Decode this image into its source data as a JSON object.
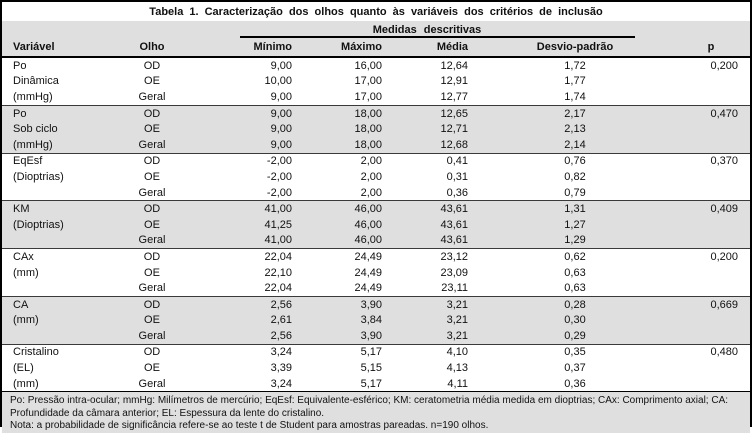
{
  "title": "Tabela 1. Caracterização dos olhos quanto às variáveis dos critérios de inclusão",
  "table": {
    "measures_group_header": "Medidas descritivas",
    "columns": {
      "variable": "Variável",
      "eye": "Olho",
      "min": "Mínimo",
      "max": "Máximo",
      "mean": "Média",
      "sd": "Desvio-padrão",
      "p": "p"
    },
    "groups": [
      {
        "variable_lines": [
          "Po",
          "Dinâmica",
          "(mmHg)"
        ],
        "shaded": false,
        "rows": [
          {
            "eye": "OD",
            "min": "9,00",
            "max": "16,00",
            "mean": "12,64",
            "sd": "1,72",
            "p": "0,200"
          },
          {
            "eye": "OE",
            "min": "10,00",
            "max": "17,00",
            "mean": "12,91",
            "sd": "1,77",
            "p": ""
          },
          {
            "eye": "Geral",
            "min": "9,00",
            "max": "17,00",
            "mean": "12,77",
            "sd": "1,74",
            "p": ""
          }
        ]
      },
      {
        "variable_lines": [
          "Po",
          "Sob ciclo",
          "(mmHg)"
        ],
        "shaded": true,
        "rows": [
          {
            "eye": "OD",
            "min": "9,00",
            "max": "18,00",
            "mean": "12,65",
            "sd": "2,17",
            "p": "0,470"
          },
          {
            "eye": "OE",
            "min": "9,00",
            "max": "18,00",
            "mean": "12,71",
            "sd": "2,13",
            "p": ""
          },
          {
            "eye": "Geral",
            "min": "9,00",
            "max": "18,00",
            "mean": "12,68",
            "sd": "2,14",
            "p": ""
          }
        ]
      },
      {
        "variable_lines": [
          "EqEsf",
          "(Dioptrias)",
          ""
        ],
        "shaded": false,
        "rows": [
          {
            "eye": "OD",
            "min": "-2,00",
            "max": "2,00",
            "mean": "0,41",
            "sd": "0,76",
            "p": "0,370"
          },
          {
            "eye": "OE",
            "min": "-2,00",
            "max": "2,00",
            "mean": "0,31",
            "sd": "0,82",
            "p": ""
          },
          {
            "eye": "Geral",
            "min": "-2,00",
            "max": "2,00",
            "mean": "0,36",
            "sd": "0,79",
            "p": ""
          }
        ]
      },
      {
        "variable_lines": [
          "KM",
          "(Dioptrias)",
          ""
        ],
        "shaded": true,
        "rows": [
          {
            "eye": "OD",
            "min": "41,00",
            "max": "46,00",
            "mean": "43,61",
            "sd": "1,31",
            "p": "0,409"
          },
          {
            "eye": "OE",
            "min": "41,25",
            "max": "46,00",
            "mean": "43,61",
            "sd": "1,27",
            "p": ""
          },
          {
            "eye": "Geral",
            "min": "41,00",
            "max": "46,00",
            "mean": "43,61",
            "sd": "1,29",
            "p": ""
          }
        ]
      },
      {
        "variable_lines": [
          "CAx",
          "(mm)",
          ""
        ],
        "shaded": false,
        "rows": [
          {
            "eye": "OD",
            "min": "22,04",
            "max": "24,49",
            "mean": "23,12",
            "sd": "0,62",
            "p": "0,200"
          },
          {
            "eye": "OE",
            "min": "22,10",
            "max": "24,49",
            "mean": "23,09",
            "sd": "0,63",
            "p": ""
          },
          {
            "eye": "Geral",
            "min": "22,04",
            "max": "24,49",
            "mean": "23,11",
            "sd": "0,63",
            "p": ""
          }
        ]
      },
      {
        "variable_lines": [
          "CA",
          "(mm)",
          ""
        ],
        "shaded": true,
        "rows": [
          {
            "eye": "OD",
            "min": "2,56",
            "max": "3,90",
            "mean": "3,21",
            "sd": "0,28",
            "p": "0,669"
          },
          {
            "eye": "OE",
            "min": "2,61",
            "max": "3,84",
            "mean": "3,21",
            "sd": "0,30",
            "p": ""
          },
          {
            "eye": "Geral",
            "min": "2,56",
            "max": "3,90",
            "mean": "3,21",
            "sd": "0,29",
            "p": ""
          }
        ]
      },
      {
        "variable_lines": [
          "Cristalino",
          "(EL)",
          "(mm)"
        ],
        "shaded": false,
        "rows": [
          {
            "eye": "OD",
            "min": "3,24",
            "max": "5,17",
            "mean": "4,10",
            "sd": "0,35",
            "p": "0,480"
          },
          {
            "eye": "OE",
            "min": "3,39",
            "max": "5,15",
            "mean": "4,13",
            "sd": "0,37",
            "p": ""
          },
          {
            "eye": "Geral",
            "min": "3,24",
            "max": "5,17",
            "mean": "4,11",
            "sd": "0,36",
            "p": ""
          }
        ]
      }
    ]
  },
  "footnotes": {
    "abbreviations": "Po: Pressão intra-ocular; mmHg: Milímetros de mercúrio; EqEsf: Equivalente-esférico; KM: ceratometria média medida em dioptrias; CAx: Comprimento axial; CA: Profundidade da câmara anterior; EL: Espessura da lente do cristalino.",
    "note": "Nota: a probabilidade de significância refere-se ao teste t de Student para amostras pareadas. n=190 olhos."
  },
  "colors": {
    "band_gray": "#dfdfdf",
    "border_black": "#000000",
    "text": "#111111"
  }
}
